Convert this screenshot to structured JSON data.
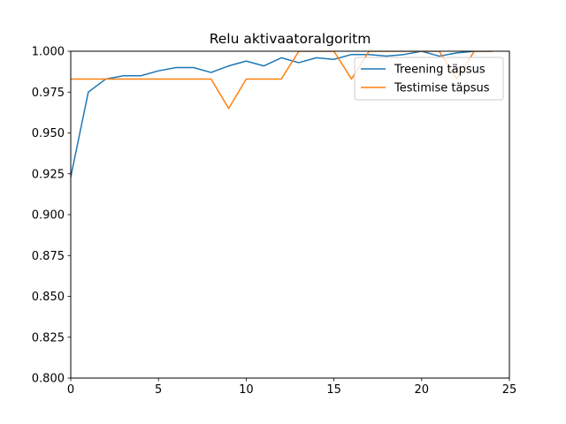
{
  "chart_data": {
    "type": "line",
    "title": "Relu aktivaatoralgoritm",
    "xlabel": "",
    "ylabel": "",
    "xlim": [
      0,
      25
    ],
    "ylim": [
      0.8,
      1.0
    ],
    "x_ticks": [
      0,
      5,
      10,
      15,
      20,
      25
    ],
    "y_ticks": [
      0.8,
      0.825,
      0.85,
      0.875,
      0.9,
      0.925,
      0.95,
      0.975,
      1.0
    ],
    "x_tick_labels": [
      "0",
      "5",
      "10",
      "15",
      "20",
      "25"
    ],
    "y_tick_labels": [
      "0.800",
      "0.825",
      "0.850",
      "0.875",
      "0.900",
      "0.925",
      "0.950",
      "0.975",
      "1.000"
    ],
    "grid": false,
    "legend_position": "upper-right",
    "x": [
      0,
      1,
      2,
      3,
      4,
      5,
      6,
      7,
      8,
      9,
      10,
      11,
      12,
      13,
      14,
      15,
      16,
      17,
      18,
      19,
      20,
      21,
      22,
      23,
      24
    ],
    "series": [
      {
        "name": "Treening täpsus",
        "color": "#1f77b4",
        "values": [
          0.923,
          0.975,
          0.983,
          0.985,
          0.985,
          0.988,
          0.99,
          0.99,
          0.987,
          0.991,
          0.994,
          0.991,
          0.996,
          0.993,
          0.996,
          0.995,
          0.998,
          0.998,
          0.997,
          0.998,
          1.0,
          0.997,
          0.999,
          1.0,
          1.0
        ]
      },
      {
        "name": "Testimise täpsus",
        "color": "#ff7f0e",
        "values": [
          0.983,
          0.983,
          0.983,
          0.983,
          0.983,
          0.983,
          0.983,
          0.983,
          0.983,
          0.965,
          0.983,
          0.983,
          0.983,
          1.0,
          1.0,
          1.0,
          0.983,
          1.0,
          1.0,
          1.0,
          1.0,
          1.0,
          0.983,
          1.0,
          1.0
        ]
      }
    ]
  }
}
